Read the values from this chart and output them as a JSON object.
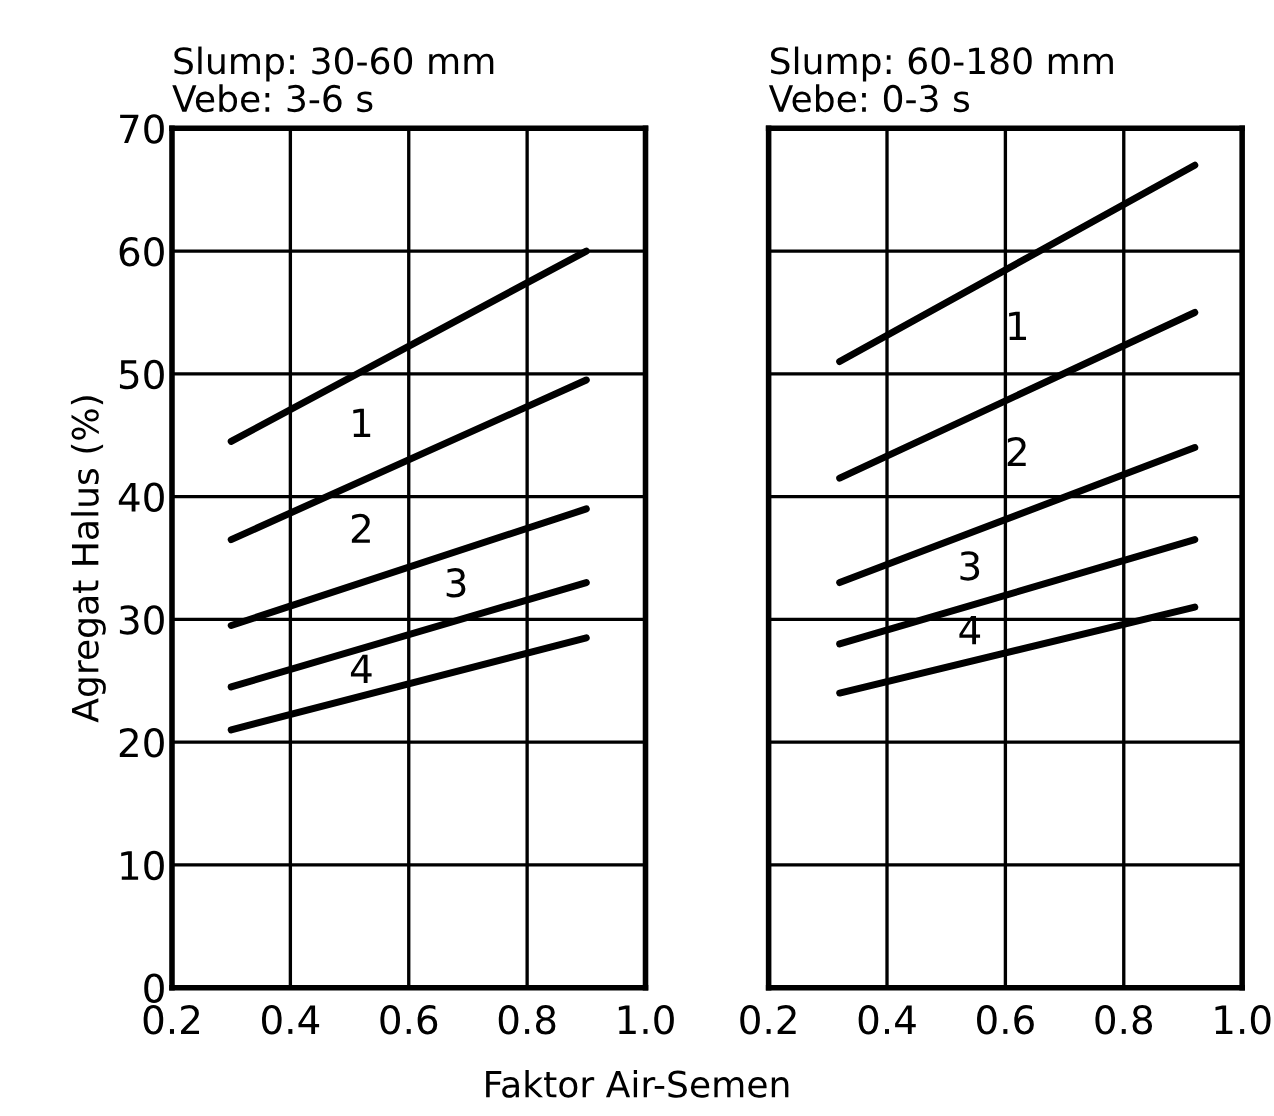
{
  "chart_data": [
    {
      "type": "line",
      "title": "Slump: 30-60 mm\nVebe: 3-6 s",
      "ylabel": "Agregat Halus (%)",
      "xlabel": "Faktor Air-Semen",
      "xlim": [
        0.2,
        1.0
      ],
      "ylim": [
        0,
        70
      ],
      "xticks": [
        0.2,
        0.4,
        0.6,
        0.8,
        {
          "value": 1.0,
          "label": "1.0"
        }
      ],
      "yticks": [
        0,
        10,
        20,
        30,
        40,
        50,
        60,
        70
      ],
      "grid": true,
      "marker": "none",
      "line_style": "solid",
      "series": [
        {
          "color": "#000000",
          "x": [
            0.3,
            0.9
          ],
          "values": [
            44.5,
            60
          ]
        },
        {
          "color": "#000000",
          "x": [
            0.3,
            0.9
          ],
          "values": [
            36.5,
            49.5
          ]
        },
        {
          "color": "#000000",
          "x": [
            0.3,
            0.9
          ],
          "values": [
            29.5,
            39
          ]
        },
        {
          "color": "#000000",
          "x": [
            0.3,
            0.9
          ],
          "values": [
            24.5,
            33
          ]
        },
        {
          "color": "#000000",
          "x": [
            0.3,
            0.9
          ],
          "values": [
            21,
            28.5
          ]
        }
      ],
      "annotations": [
        "1",
        "2",
        "3",
        "4"
      ]
    },
    {
      "type": "line",
      "title": "Slump: 60-180 mm\nVebe: 0-3 s",
      "xlim": [
        0.2,
        1.0
      ],
      "ylim": [
        0,
        70
      ],
      "xticks": [
        0.2,
        0.4,
        0.6,
        0.8,
        {
          "value": 1.0,
          "label": "1.0"
        }
      ],
      "yticks": [
        0,
        10,
        20,
        30,
        40,
        50,
        60,
        70
      ],
      "tick_labels": "x",
      "grid": true,
      "marker": "none",
      "line_style": "solid",
      "series": [
        {
          "color": "#000000",
          "x": [
            0.32,
            0.92
          ],
          "values": [
            51,
            67
          ]
        },
        {
          "color": "#000000",
          "x": [
            0.32,
            0.92
          ],
          "values": [
            41.5,
            55
          ]
        },
        {
          "color": "#000000",
          "x": [
            0.32,
            0.92
          ],
          "values": [
            33,
            44
          ]
        },
        {
          "color": "#000000",
          "x": [
            0.32,
            0.92
          ],
          "values": [
            28,
            36.5
          ]
        },
        {
          "color": "#000000",
          "x": [
            0.32,
            0.92
          ],
          "values": [
            24,
            31
          ]
        }
      ],
      "annotations": [
        "1",
        "2",
        "3",
        "4"
      ]
    }
  ]
}
